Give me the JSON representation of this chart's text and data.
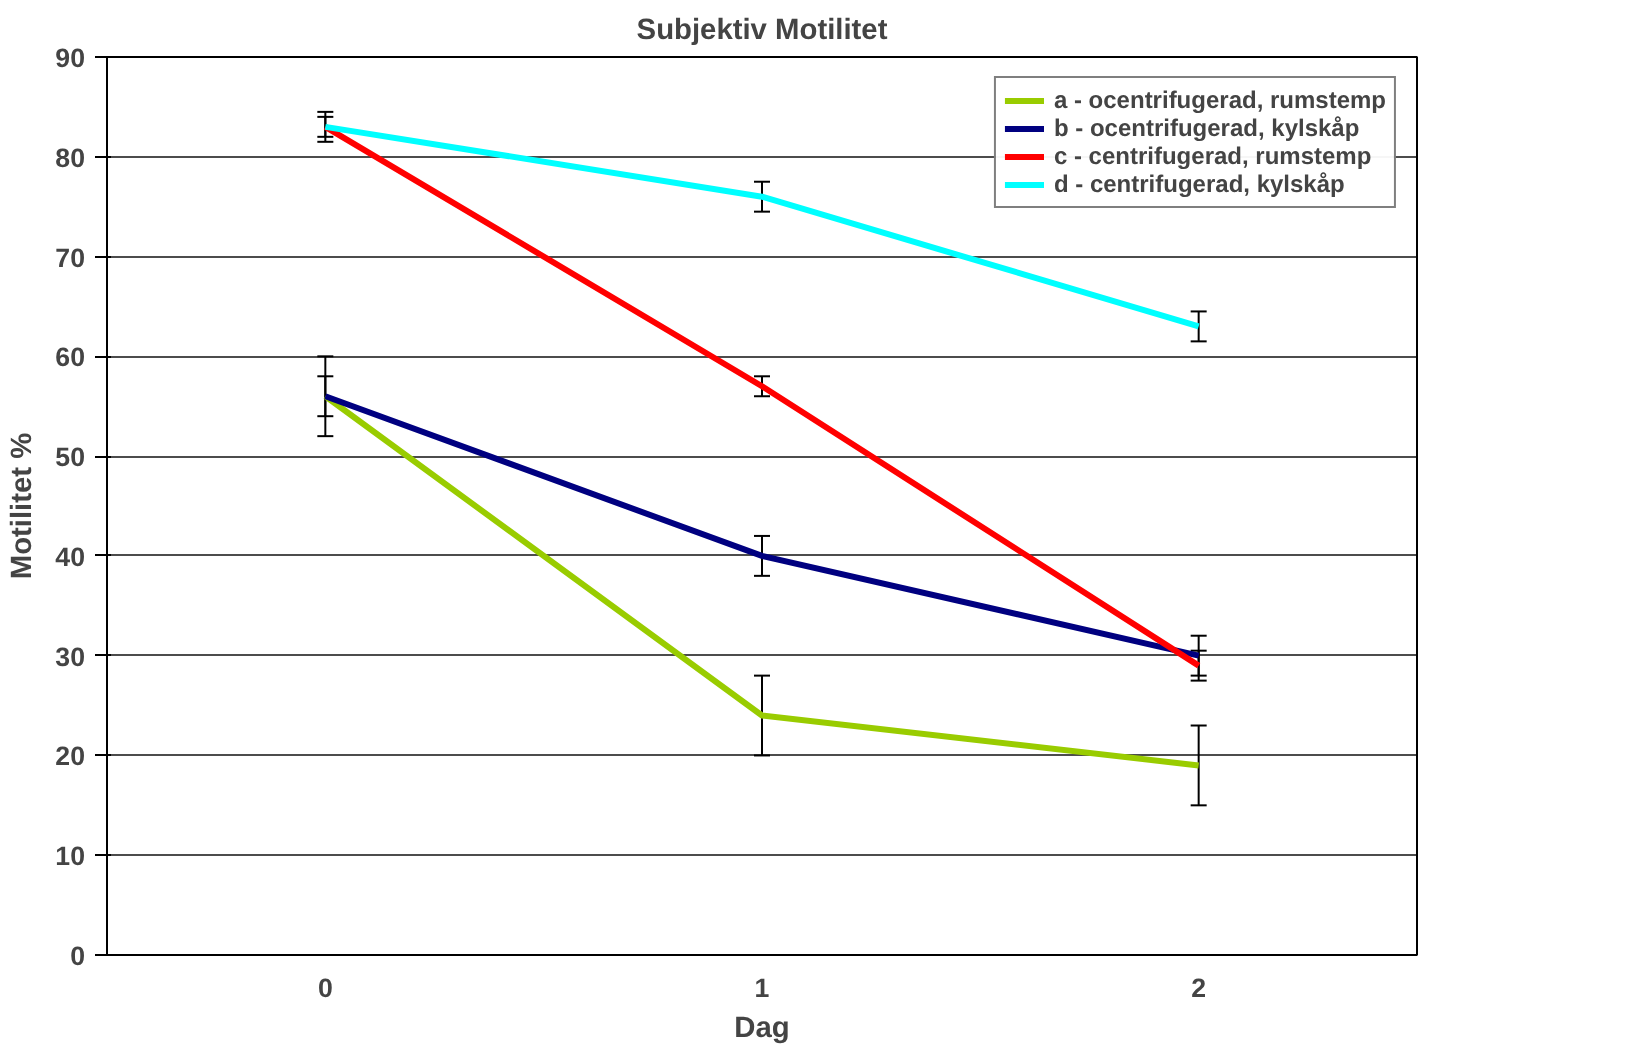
{
  "chart_data": {
    "type": "line",
    "title": "Subjektiv Motilitet",
    "xlabel": "Dag",
    "ylabel": "Motilitet %",
    "categories": [
      "0",
      "1",
      "2"
    ],
    "series": [
      {
        "name": "a - ocentrifugerad, rumstemp",
        "color": "#99cc00",
        "values": [
          56,
          24,
          19
        ],
        "errors": [
          4,
          4,
          4
        ]
      },
      {
        "name": "b - ocentrifugerad, kylskåp",
        "color": "#000080",
        "values": [
          56,
          40,
          30
        ],
        "errors": [
          2,
          2,
          2
        ]
      },
      {
        "name": "c - centrifugerad, rumstemp",
        "color": "#ff0000",
        "values": [
          83,
          57,
          29
        ],
        "errors": [
          1,
          1,
          1.5
        ]
      },
      {
        "name": "d - centrifugerad, kylskåp",
        "color": "#00ffff",
        "values": [
          83,
          76,
          63
        ],
        "errors": [
          1.5,
          1.5,
          1.5
        ]
      }
    ],
    "ylim": [
      0,
      90
    ],
    "yticks": [
      0,
      10,
      20,
      30,
      40,
      50,
      60,
      70,
      80,
      90
    ],
    "grid": "y",
    "legend": "top right",
    "marker": "none",
    "line_style": "solid"
  }
}
